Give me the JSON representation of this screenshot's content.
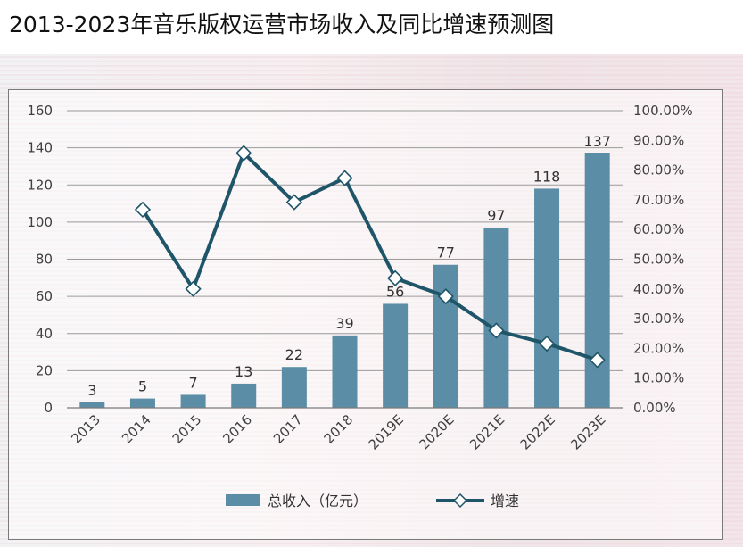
{
  "title": "2013-2023年音乐版权运营市场收入及同比增速预测图",
  "colors": {
    "bar": "#5b8ea6",
    "line": "#1f5568",
    "grid": "#9a9a9a",
    "marker_fill": "#ffffff"
  },
  "chart_data": {
    "type": "bar",
    "title": "",
    "categories": [
      "2013",
      "2014",
      "2015",
      "2016",
      "2017",
      "2018",
      "2019E",
      "2020E",
      "2021E",
      "2022E",
      "2023E"
    ],
    "series": [
      {
        "name": "总收入（亿元）",
        "type": "bar",
        "axis": "left",
        "values": [
          3,
          5,
          7,
          13,
          22,
          39,
          56,
          77,
          97,
          118,
          137
        ],
        "labels": [
          "3",
          "5",
          "7",
          "13",
          "22",
          "39",
          "56",
          "77",
          "97",
          "118",
          "137"
        ]
      },
      {
        "name": "增速",
        "type": "line",
        "axis": "right",
        "marker": "diamond",
        "values": [
          null,
          0.667,
          0.4,
          0.857,
          0.692,
          0.773,
          0.436,
          0.375,
          0.26,
          0.216,
          0.161
        ]
      }
    ],
    "y_left": {
      "min": 0,
      "max": 160,
      "ticks": [
        "0",
        "20",
        "40",
        "60",
        "80",
        "100",
        "120",
        "140",
        "160"
      ]
    },
    "y_right": {
      "min": 0,
      "max": 1,
      "ticks": [
        "0.00%",
        "10.00%",
        "20.00%",
        "30.00%",
        "40.00%",
        "50.00%",
        "60.00%",
        "70.00%",
        "80.00%",
        "90.00%",
        "100.00%"
      ]
    },
    "grid": true,
    "legend": {
      "position": "bottom",
      "items": [
        "总收入（亿元）",
        "增速"
      ]
    }
  }
}
